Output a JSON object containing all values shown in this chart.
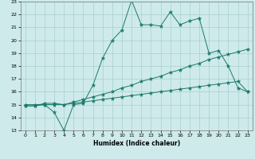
{
  "xlabel": "Humidex (Indice chaleur)",
  "xlim": [
    -0.5,
    23.5
  ],
  "ylim": [
    13,
    23
  ],
  "yticks": [
    13,
    14,
    15,
    16,
    17,
    18,
    19,
    20,
    21,
    22,
    23
  ],
  "xticks": [
    0,
    1,
    2,
    3,
    4,
    5,
    6,
    7,
    8,
    9,
    10,
    11,
    12,
    13,
    14,
    15,
    16,
    17,
    18,
    19,
    20,
    21,
    22,
    23
  ],
  "bg_color": "#ceeaea",
  "line_color": "#1a7a6a",
  "grid_color": "#aacfcf",
  "line1_x": [
    0,
    1,
    2,
    3,
    4,
    5,
    6,
    7,
    8,
    9,
    10,
    11,
    12,
    13,
    14,
    15,
    16,
    17,
    18,
    19,
    20,
    21,
    22,
    23
  ],
  "line1_y": [
    15.0,
    15.0,
    15.0,
    14.4,
    13.0,
    15.0,
    15.1,
    16.5,
    18.6,
    20.0,
    20.8,
    23.1,
    21.2,
    21.2,
    21.1,
    22.2,
    21.2,
    21.5,
    21.7,
    19.0,
    19.2,
    18.0,
    16.3,
    16.0
  ],
  "line2_x": [
    0,
    1,
    2,
    3,
    4,
    5,
    6,
    7,
    8,
    9,
    10,
    11,
    12,
    13,
    14,
    15,
    16,
    17,
    18,
    19,
    20,
    21,
    22,
    23
  ],
  "line2_y": [
    14.9,
    14.9,
    15.1,
    15.1,
    15.0,
    15.2,
    15.4,
    15.6,
    15.8,
    16.0,
    16.3,
    16.5,
    16.8,
    17.0,
    17.2,
    17.5,
    17.7,
    18.0,
    18.2,
    18.5,
    18.7,
    18.9,
    19.1,
    19.3
  ],
  "line3_x": [
    0,
    1,
    2,
    3,
    4,
    5,
    6,
    7,
    8,
    9,
    10,
    11,
    12,
    13,
    14,
    15,
    16,
    17,
    18,
    19,
    20,
    21,
    22,
    23
  ],
  "line3_y": [
    14.9,
    14.9,
    15.0,
    15.0,
    15.0,
    15.1,
    15.2,
    15.3,
    15.4,
    15.5,
    15.6,
    15.7,
    15.8,
    15.9,
    16.0,
    16.1,
    16.2,
    16.3,
    16.4,
    16.5,
    16.6,
    16.7,
    16.8,
    16.0
  ]
}
